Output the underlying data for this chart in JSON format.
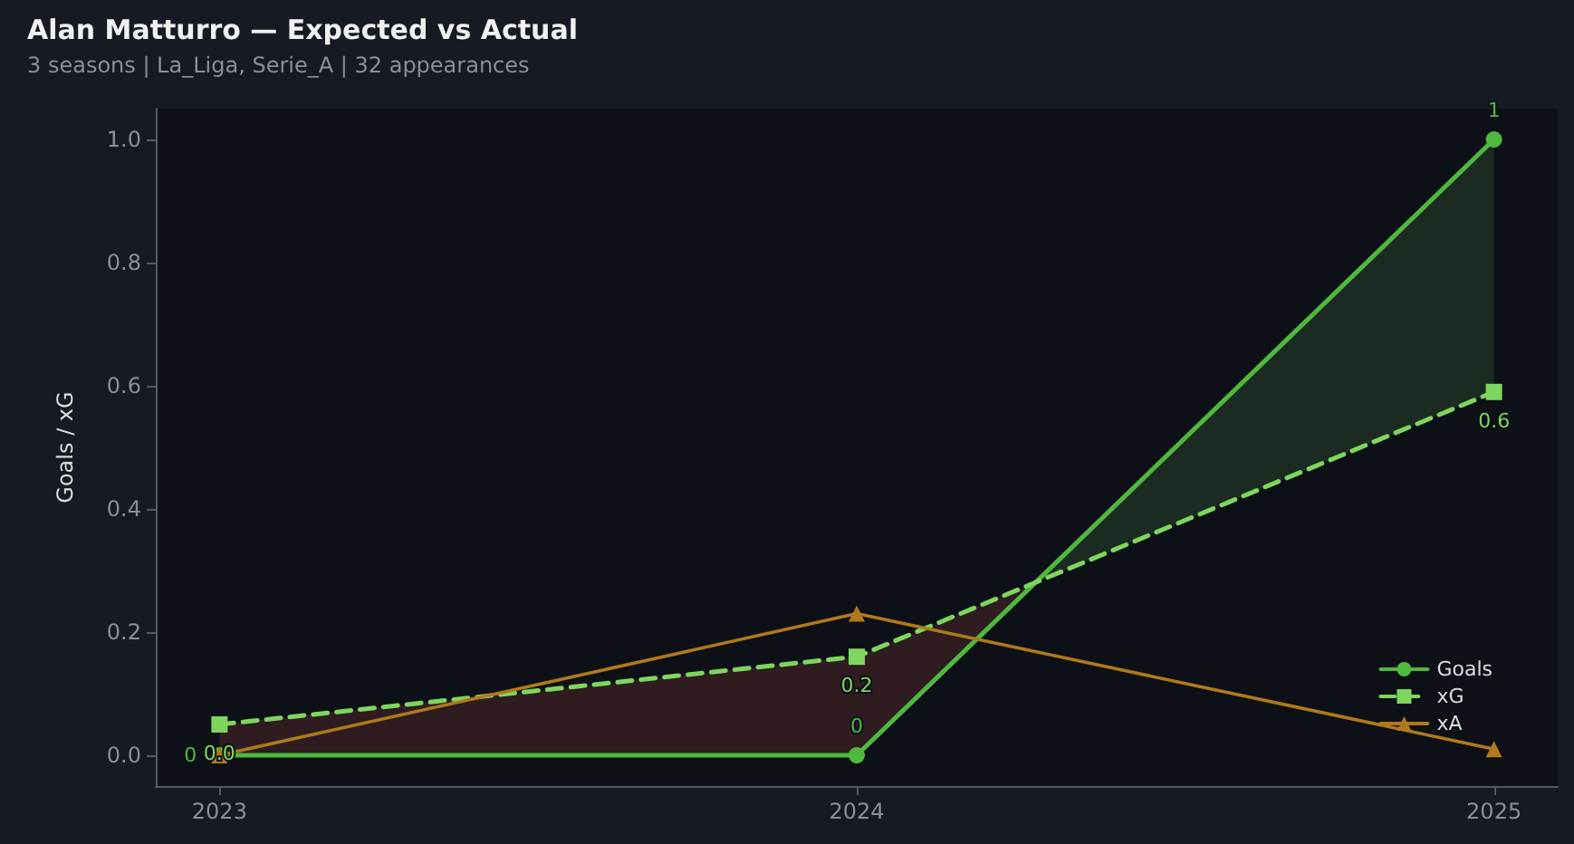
{
  "chart_data": {
    "type": "line",
    "title": "Alan Matturro — Expected vs Actual",
    "subtitle": "3 seasons | La_Liga, Serie_A | 32 appearances",
    "ylabel": "Goals / xG",
    "x": [
      2023,
      2024,
      2025
    ],
    "xlim": [
      2022.9,
      2025.1
    ],
    "xticks": [
      2023,
      2024,
      2025
    ],
    "ylim": [
      -0.05,
      1.05
    ],
    "yticks": [
      {
        "value": 0,
        "label": "0.0"
      },
      0.2,
      0.4,
      0.6,
      0.8,
      {
        "value": 1,
        "label": "1.0"
      }
    ],
    "grid": false,
    "legend": "bottom right",
    "series": [
      {
        "name": "Goals",
        "color": "#4fb83f",
        "values": [
          0,
          0,
          1
        ],
        "marker": "circle",
        "line_style": "solid",
        "value_labels": [
          "0",
          "0",
          "1"
        ]
      },
      {
        "name": "xG",
        "color": "#7ed65e",
        "values": [
          0.05,
          0.16,
          0.59
        ],
        "marker": "square",
        "line_style": "dashed",
        "value_labels": [
          "0.0",
          "0.2",
          "0.6"
        ],
        "lower": [
          0,
          0,
          1
        ],
        "upper": [
          0.05,
          0.16,
          0.59
        ]
      },
      {
        "name": "xA",
        "color": "#b07a1a",
        "values": [
          0,
          0.23,
          0.01
        ],
        "marker": "triangle",
        "line_style": "solid"
      }
    ]
  }
}
